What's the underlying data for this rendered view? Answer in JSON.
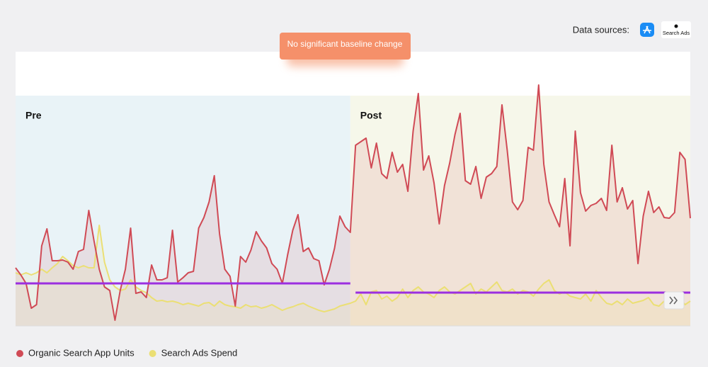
{
  "header": {
    "label": "Data sources:",
    "badge": "Search Ads"
  },
  "banner": "No significant baseline change",
  "chart_data": {
    "type": "line",
    "ylim": [
      0,
      387
    ],
    "regions": [
      {
        "label": "Pre",
        "range": [
          0,
          64
        ],
        "color": "#e9f3f7"
      },
      {
        "label": "Post",
        "range": [
          64,
          129
        ],
        "color": "#f6f7ea"
      }
    ],
    "baselines": [
      {
        "value": 60,
        "range": [
          0,
          64
        ]
      },
      {
        "value": 47,
        "range": [
          65,
          129
        ]
      }
    ],
    "baseline_color": "#9b2fe0",
    "series": [
      {
        "name": "Organic Search App Units",
        "color": "#d04a55",
        "values": [
          82,
          72,
          60,
          25,
          30,
          113,
          137,
          92,
          92,
          93,
          90,
          80,
          105,
          108,
          163,
          120,
          80,
          55,
          50,
          8,
          50,
          80,
          138,
          46,
          48,
          40,
          86,
          65,
          65,
          68,
          135,
          62,
          68,
          75,
          77,
          138,
          153,
          175,
          212,
          130,
          80,
          70,
          28,
          98,
          90,
          107,
          133,
          120,
          110,
          88,
          80,
          60,
          100,
          135,
          157,
          105,
          110,
          95,
          92,
          58,
          80,
          110,
          155,
          140,
          132,
          255,
          260,
          265,
          223,
          258,
          215,
          208,
          245,
          217,
          228,
          190,
          275,
          328,
          220,
          240,
          202,
          144,
          198,
          230,
          270,
          300,
          205,
          200,
          225,
          180,
          210,
          215,
          225,
          312,
          248,
          175,
          164,
          177,
          252,
          248,
          340,
          228,
          175,
          157,
          140,
          208,
          113,
          275,
          188,
          162,
          170,
          173,
          180,
          163,
          255,
          175,
          195,
          165,
          177,
          88,
          155,
          190,
          160,
          168,
          153,
          152,
          160,
          245,
          235,
          152
        ]
      },
      {
        "name": "Search Ads Spend",
        "color": "#ebdf74",
        "values": [
          75,
          72,
          75,
          72,
          75,
          80,
          75,
          82,
          88,
          98,
          92,
          85,
          82,
          85,
          82,
          82,
          142,
          90,
          65,
          55,
          50,
          52,
          65,
          55,
          50,
          47,
          40,
          35,
          36,
          34,
          35,
          33,
          30,
          32,
          30,
          28,
          32,
          33,
          28,
          35,
          30,
          28,
          27,
          25,
          30,
          27,
          28,
          25,
          27,
          30,
          26,
          22,
          25,
          27,
          30,
          32,
          28,
          25,
          22,
          20,
          22,
          24,
          28,
          30,
          32,
          35,
          45,
          30,
          48,
          50,
          38,
          42,
          35,
          40,
          52,
          40,
          50,
          55,
          48,
          45,
          40,
          50,
          55,
          48,
          45,
          50,
          55,
          60,
          45,
          52,
          48,
          55,
          62,
          50,
          48,
          52,
          45,
          50,
          48,
          42,
          52,
          60,
          65,
          50,
          45,
          48,
          42,
          40,
          38,
          45,
          35,
          50,
          40,
          32,
          30,
          35,
          30,
          38,
          32,
          34,
          36,
          40,
          30,
          28,
          35,
          42,
          38,
          40,
          30,
          35
        ]
      }
    ]
  }
}
